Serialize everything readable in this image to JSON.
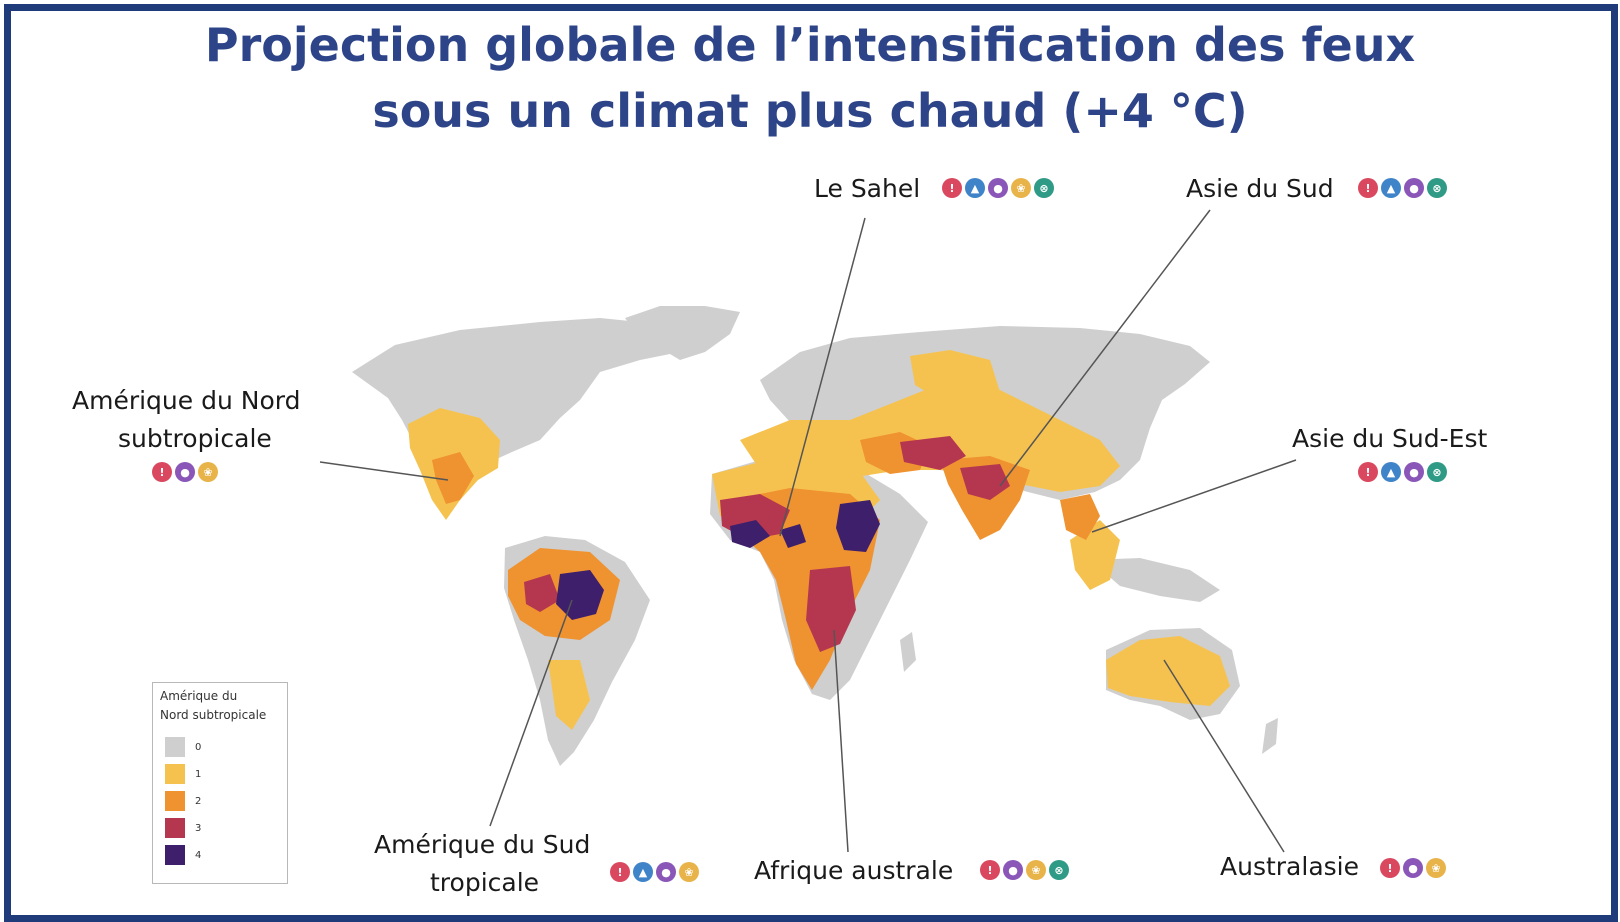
{
  "title": {
    "line1": "Projection globale de l’intensification des feux",
    "line2": "sous un climat plus chaud (+4 °C)"
  },
  "regions": [
    {
      "id": "sahel",
      "label": "Le Sahel",
      "icons": [
        "red",
        "blue",
        "purple",
        "yellow",
        "teal"
      ]
    },
    {
      "id": "south-asia",
      "label": "Asie du Sud",
      "icons": [
        "red",
        "blue",
        "purple",
        "teal"
      ]
    },
    {
      "id": "north-america",
      "label_line1": "Amérique du Nord",
      "label_line2": "subtropicale",
      "icons": [
        "red",
        "purple",
        "yellow"
      ]
    },
    {
      "id": "southeast-asia",
      "label": "Asie du Sud-Est",
      "icons": [
        "red",
        "blue",
        "purple",
        "teal"
      ]
    },
    {
      "id": "south-america",
      "label_line1": "Amérique du Sud",
      "label_line2": "tropicale",
      "icons": [
        "red",
        "blue",
        "purple",
        "yellow"
      ]
    },
    {
      "id": "southern-africa",
      "label": "Afrique australe",
      "icons": [
        "red",
        "purple",
        "yellow",
        "teal"
      ]
    },
    {
      "id": "australasia",
      "label": "Australasie",
      "icons": [
        "red",
        "purple",
        "yellow"
      ]
    }
  ],
  "legend": {
    "title_line1": "Amérique du",
    "title_line2": "Nord subtropicale",
    "items": [
      {
        "value": "0",
        "color": "#cfcfcf"
      },
      {
        "value": "1",
        "color": "#f6c24f"
      },
      {
        "value": "2",
        "color": "#ef9230"
      },
      {
        "value": "3",
        "color": "#b5374f"
      },
      {
        "value": "4",
        "color": "#3d1f6b"
      }
    ]
  },
  "icon_colors": {
    "red": "#d9485e",
    "blue": "#3f84c8",
    "purple": "#8a56b8",
    "yellow": "#e8b44a",
    "teal": "#2f9a85"
  }
}
